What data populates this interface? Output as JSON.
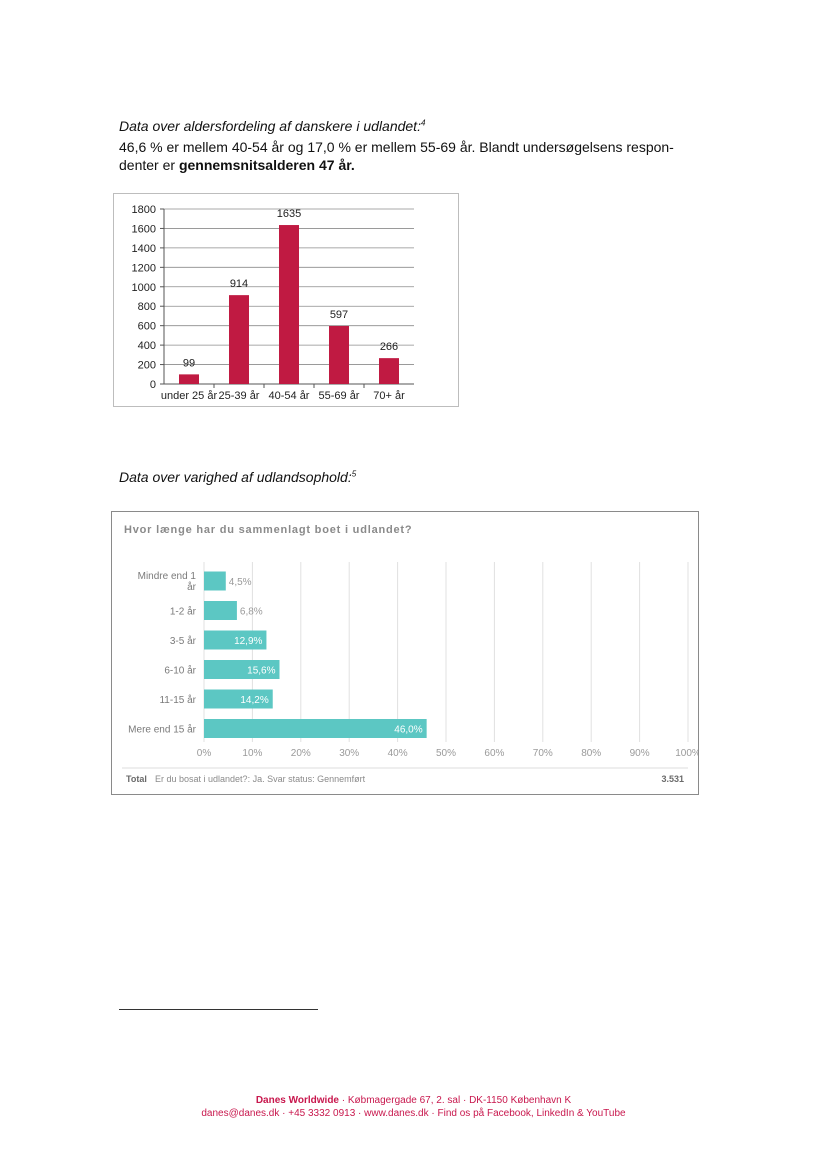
{
  "heading1": {
    "text": "Data over aldersfordeling af danskere i udlandet:",
    "note": "4"
  },
  "intro": {
    "line1": "46,6 % er mellem 40-54 år og 17,0 % er mellem 55-69 år. Blandt undersøgelsens respon-",
    "line2_pre": "denter er ",
    "line2_bold": "gennemsnitsalderen 47 år."
  },
  "heading2": {
    "text": "Data over varighed af udlandsophold:",
    "note": "5"
  },
  "colors": {
    "bar_red": "#c01a42",
    "bar_teal": "#5cc7c3",
    "footer_red": "#c8174d"
  },
  "chart_data": [
    {
      "type": "bar",
      "title": "",
      "categories": [
        "under 25 år",
        "25-39 år",
        "40-54 år",
        "55-69 år",
        "70+ år"
      ],
      "values": [
        99,
        914,
        1635,
        597,
        266
      ],
      "value_labels": [
        "99",
        "914",
        "1635",
        "597",
        "266"
      ],
      "yticks": [
        0,
        200,
        400,
        600,
        800,
        1000,
        1200,
        1400,
        1600,
        1800
      ],
      "ylim": [
        0,
        1800
      ],
      "grid": true,
      "xlabel": "",
      "ylabel": ""
    },
    {
      "type": "bar",
      "orientation": "horizontal",
      "title": "Hvor længe har du sammenlagt boet i udlandet?",
      "categories": [
        "Mindre end 1 år",
        "1-2 år",
        "3-5 år",
        "6-10 år",
        "11-15 år",
        "Mere end 15 år"
      ],
      "values": [
        4.5,
        6.8,
        12.9,
        15.6,
        14.2,
        46.0
      ],
      "value_labels": [
        "4,5%",
        "6,8%",
        "12,9%",
        "15,6%",
        "14,2%",
        "46,0%"
      ],
      "xticks": [
        "0%",
        "10%",
        "20%",
        "30%",
        "40%",
        "50%",
        "60%",
        "70%",
        "80%",
        "90%",
        "100%"
      ],
      "xlim": [
        0,
        100
      ],
      "grid": true,
      "footer_total_label": "Total",
      "footer_text": "Er du bosat i udlandet?: Ja. Svar status: Gennemført",
      "footer_count": "3.531"
    }
  ],
  "footer": {
    "org": "Danes Worldwide",
    "line1_rest": " · Købmagergade 67, 2. sal · DK-1150 København K",
    "line2": "danes@danes.dk · +45 3332 0913 · www.danes.dk · Find os på Facebook, LinkedIn & YouTube"
  }
}
